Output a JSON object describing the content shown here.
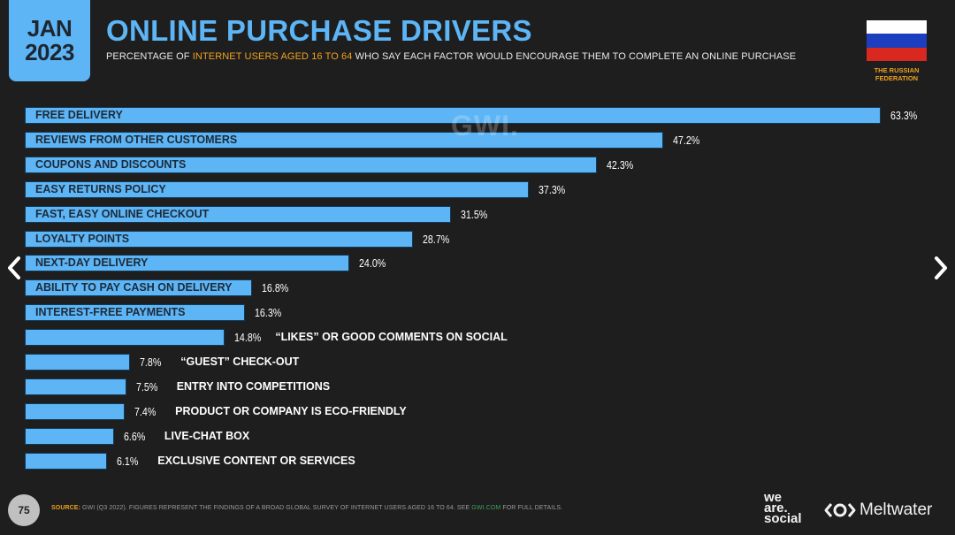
{
  "header": {
    "date_month": "JAN",
    "date_year": "2023",
    "title": "ONLINE PURCHASE DRIVERS",
    "subtitle_pre": "PERCENTAGE OF ",
    "subtitle_highlight": "INTERNET USERS AGED 16 TO 64",
    "subtitle_post": " WHO SAY EACH FACTOR WOULD ENCOURAGE THEM TO COMPLETE AN ONLINE PURCHASE",
    "country_line1": "THE RUSSIAN",
    "country_line2": "FEDERATION"
  },
  "colors": {
    "bar": "#5db5f5",
    "accent": "#f0a020",
    "flag": [
      "#ffffff",
      "#1c3fbf",
      "#d8281f"
    ]
  },
  "watermark": "GWI.",
  "chart_data": {
    "type": "bar",
    "orientation": "horizontal",
    "title": "ONLINE PURCHASE DRIVERS",
    "xlabel": "",
    "ylabel": "",
    "xlim": [
      0,
      63.3
    ],
    "grid": false,
    "unit": "%",
    "categories": [
      "FREE DELIVERY",
      "REVIEWS FROM OTHER CUSTOMERS",
      "COUPONS AND DISCOUNTS",
      "EASY RETURNS POLICY",
      "FAST, EASY ONLINE CHECKOUT",
      "LOYALTY POINTS",
      "NEXT-DAY DELIVERY",
      "ABILITY TO PAY CASH ON DELIVERY",
      "INTEREST-FREE PAYMENTS",
      "“LIKES” OR GOOD COMMENTS ON SOCIAL",
      "“GUEST” CHECK-OUT",
      "ENTRY INTO COMPETITIONS",
      "PRODUCT OR COMPANY IS ECO-FRIENDLY",
      "LIVE-CHAT BOX",
      "EXCLUSIVE CONTENT OR SERVICES"
    ],
    "values": [
      63.3,
      47.2,
      42.3,
      37.3,
      31.5,
      28.7,
      24.0,
      16.8,
      16.3,
      14.8,
      7.8,
      7.5,
      7.4,
      6.6,
      6.1
    ],
    "value_labels": [
      "63.3%",
      "47.2%",
      "42.3%",
      "37.3%",
      "31.5%",
      "28.7%",
      "24.0%",
      "16.8%",
      "16.3%",
      "14.8%",
      "7.8%",
      "7.5%",
      "7.4%",
      "6.6%",
      "6.1%"
    ],
    "labels_inside_count": 9
  },
  "footer": {
    "page_number": "75",
    "source_label": "SOURCE:",
    "source_text": " GWI (Q3 2022). FIGURES REPRESENT THE FINDINGS OF A BROAD GLOBAL SURVEY OF INTERNET USERS AGED 16 TO 64. SEE ",
    "source_link": "GWI.COM",
    "source_tail": " FOR FULL DETAILS.",
    "logo1_line1": "we",
    "logo1_line2": "are.",
    "logo1_line3": "social",
    "logo2": "Meltwater"
  },
  "nav": {
    "prev": "‹",
    "next": "›"
  }
}
